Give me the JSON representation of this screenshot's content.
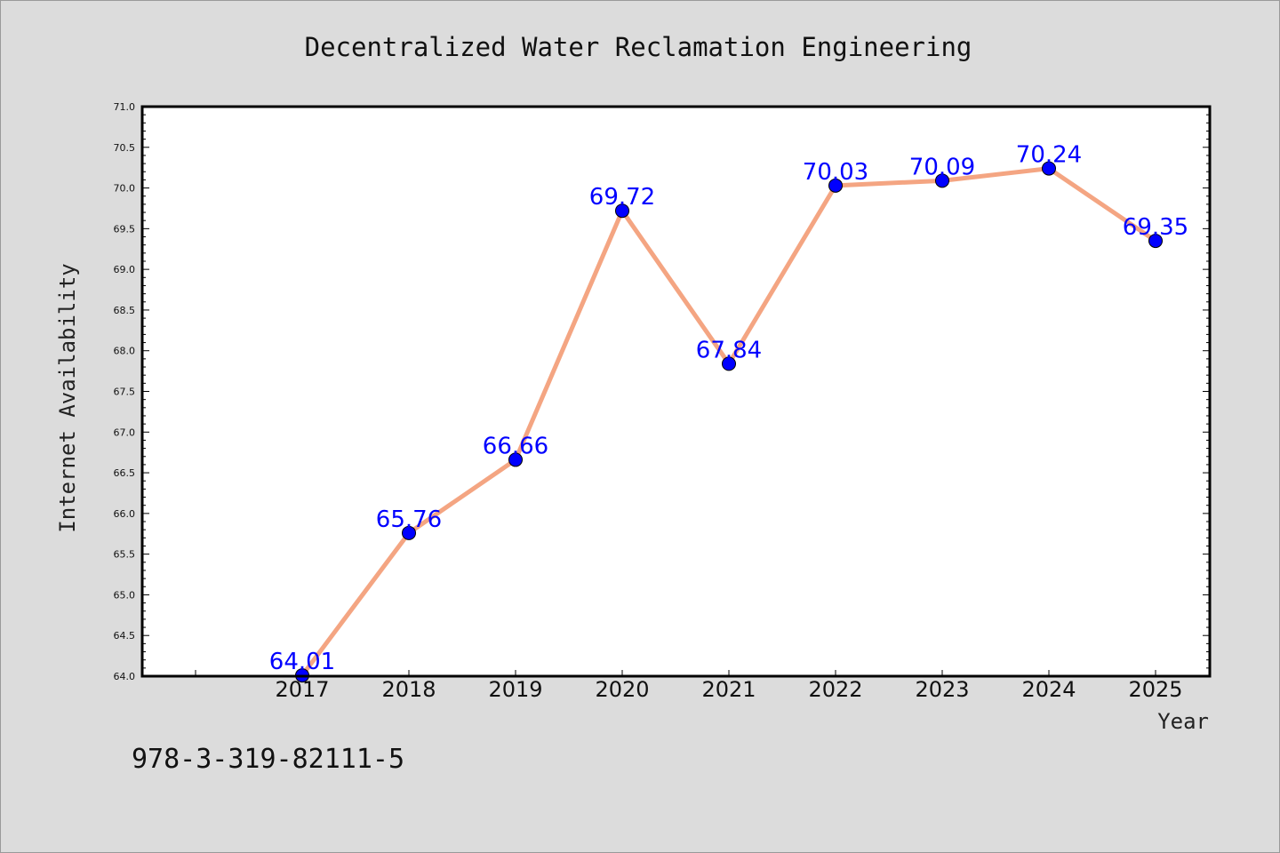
{
  "chart_data": {
    "type": "line",
    "title": "Decentralized Water Reclamation Engineering",
    "xlabel": "Year",
    "ylabel": "Internet Availability",
    "categories": [
      "2017",
      "2018",
      "2019",
      "2020",
      "2021",
      "2022",
      "2023",
      "2024",
      "2025"
    ],
    "series": [
      {
        "values": [
          64.01,
          65.76,
          66.66,
          69.72,
          67.84,
          70.03,
          70.09,
          70.24,
          69.35
        ],
        "line_color": "#f4a582",
        "marker_color": "#0000ff"
      }
    ],
    "data_labels": [
      "64.01",
      "65.76",
      "66.66",
      "69.72",
      "67.84",
      "70.03",
      "70.09",
      "70.24",
      "69.35"
    ],
    "ylim": [
      64.0,
      71.0
    ],
    "yticks": [
      "64.0",
      "64.5",
      "65.0",
      "65.5",
      "66.0",
      "66.5",
      "67.0",
      "67.5",
      "68.0",
      "68.5",
      "69.0",
      "69.5",
      "70.0",
      "70.5",
      "71.0"
    ],
    "grid": false,
    "label_color": "#0000ff"
  },
  "footer": {
    "text": "978-3-319-82111-5"
  }
}
